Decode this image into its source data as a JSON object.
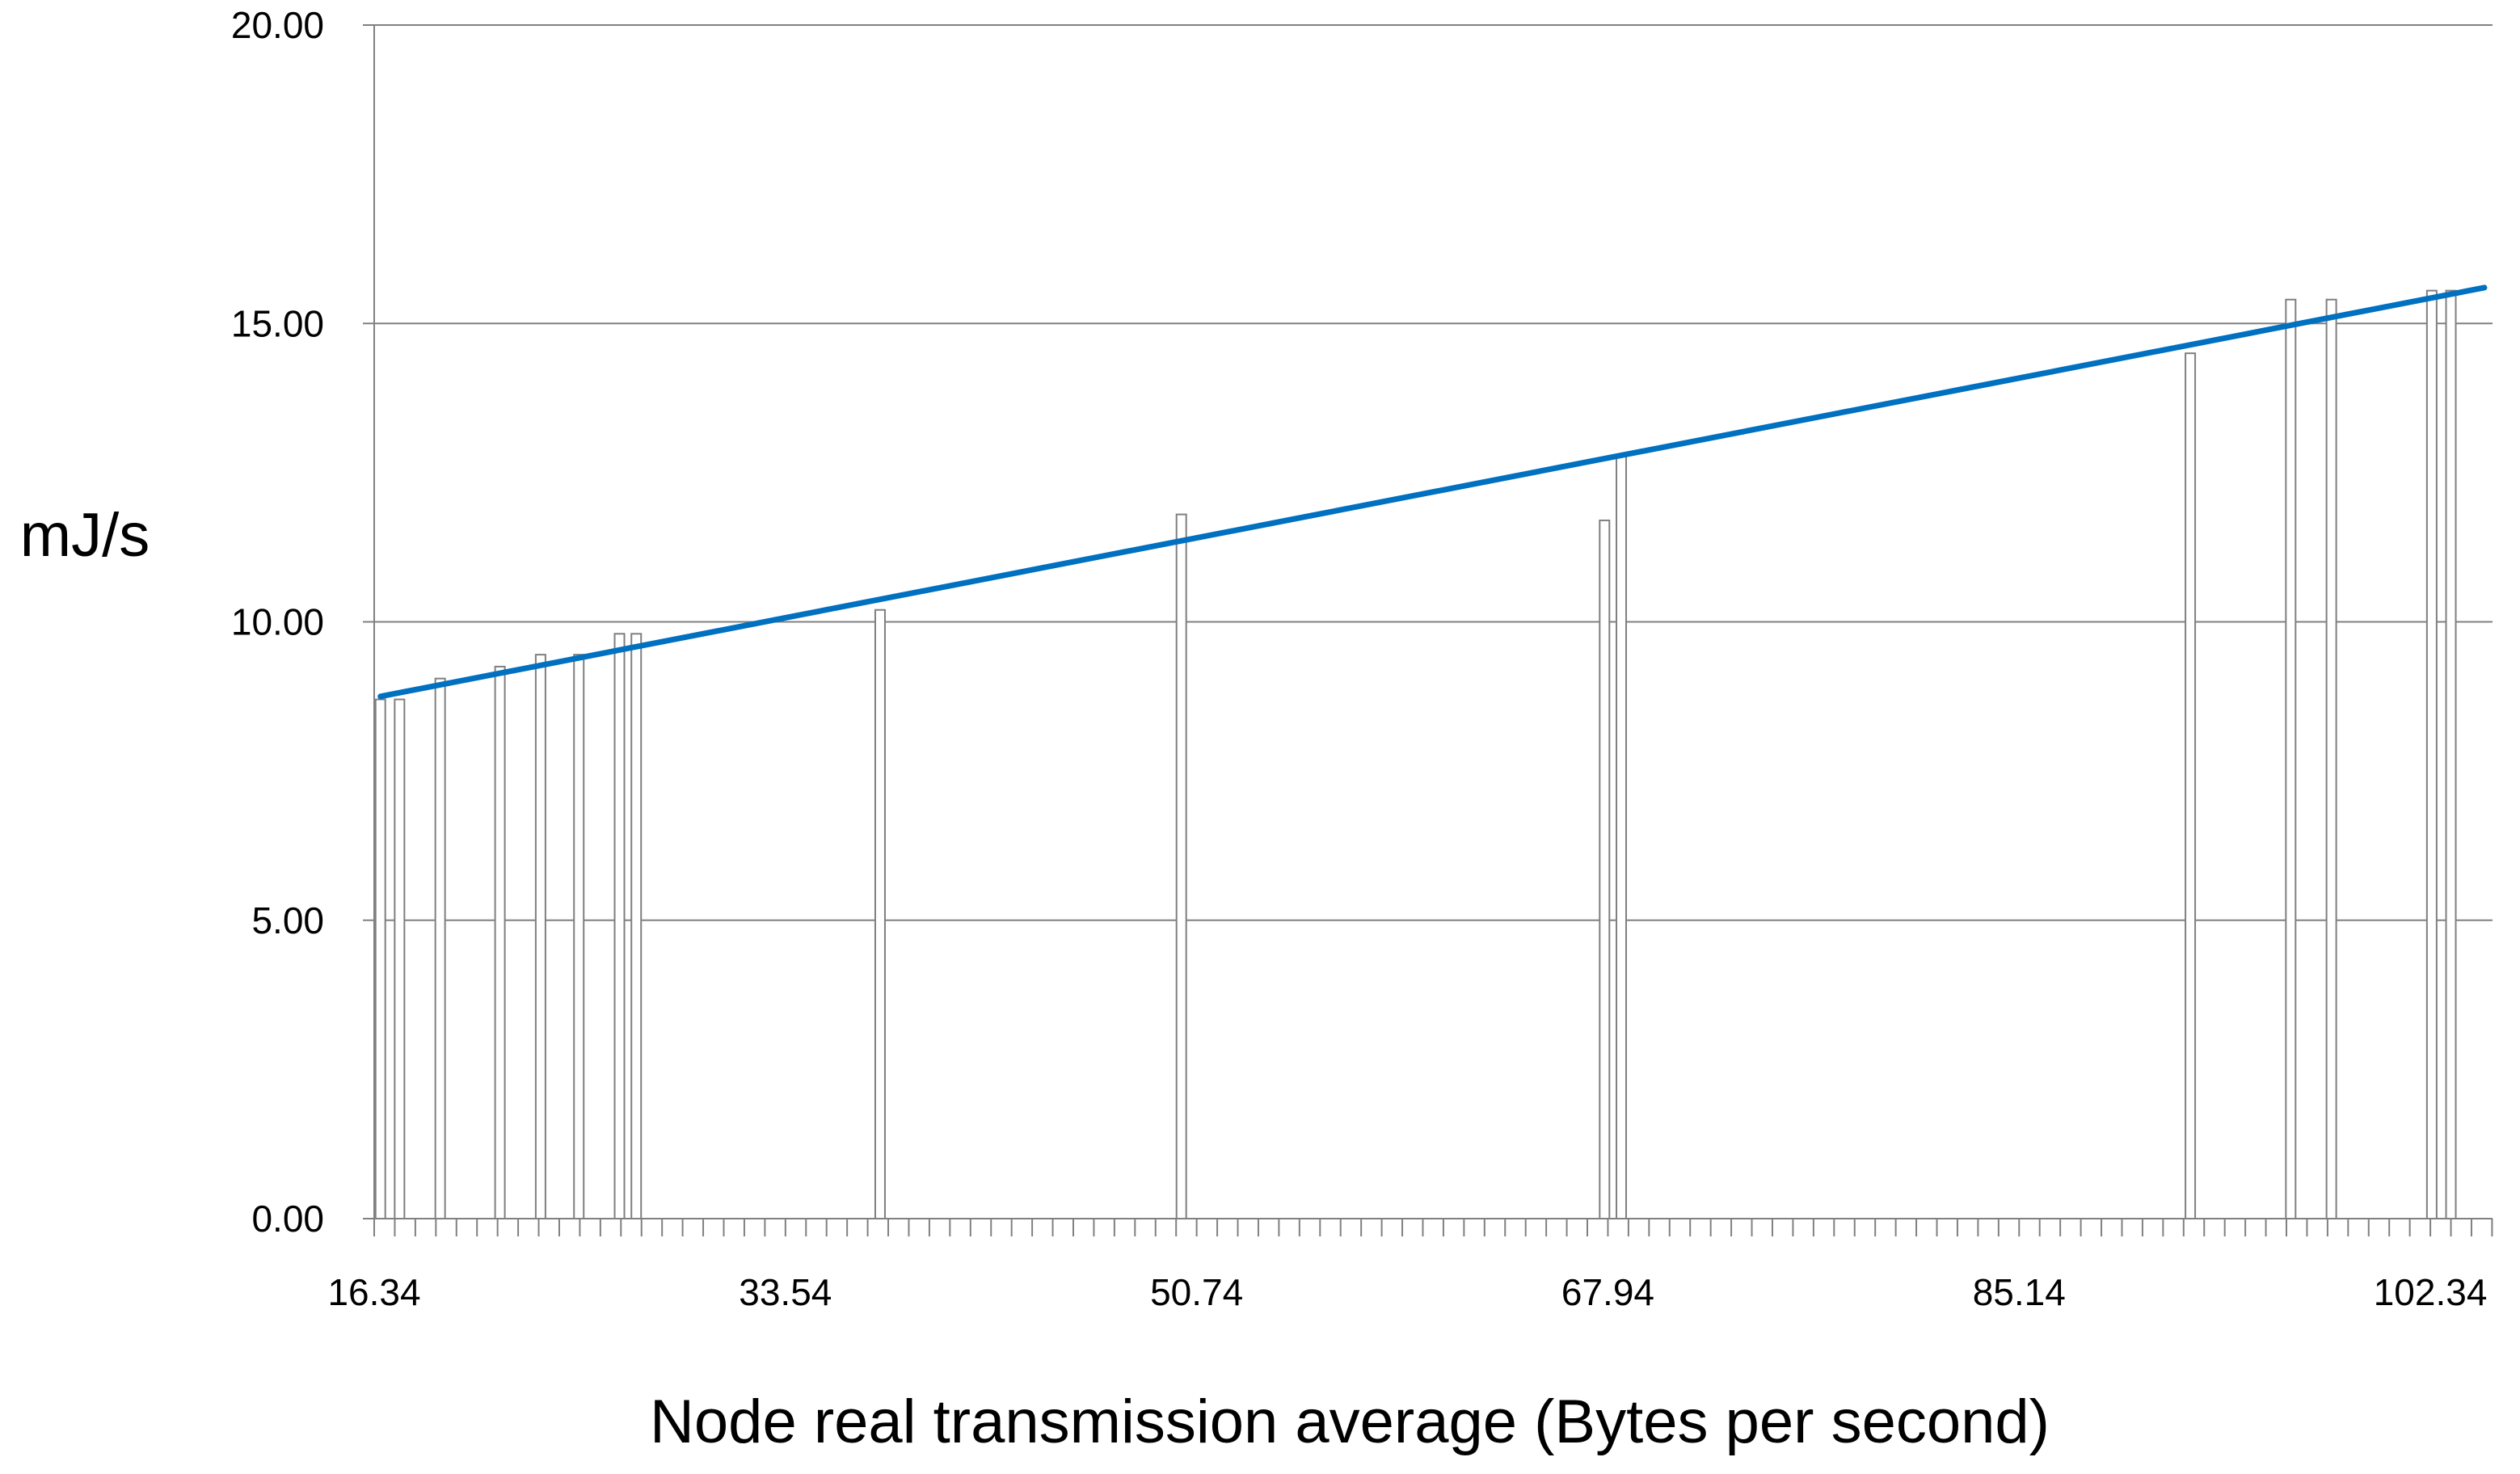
{
  "chart_data": {
    "type": "bar",
    "title": "",
    "xlabel": "Node real transmission average (Bytes per second)",
    "ylabel": "mJ/s",
    "xlim": [
      16.34,
      104.94
    ],
    "ylim": [
      0,
      20
    ],
    "grid": true,
    "legend": "none",
    "x_tick_labels": [
      "16.34",
      "33.54",
      "50.74",
      "67.94",
      "85.14",
      "102.34"
    ],
    "y_tick_labels": [
      "0.00",
      "5.00",
      "10.00",
      "15.00",
      "20.00"
    ],
    "y_ticks": [
      0,
      5,
      10,
      15,
      20
    ],
    "x_minor_tick_step": 0.86,
    "bars": {
      "x": [
        16.6,
        17.4,
        19.1,
        21.6,
        23.3,
        24.9,
        26.6,
        27.3,
        37.5,
        50.1,
        67.8,
        68.5,
        92.3,
        96.5,
        98.2,
        102.4,
        103.2
      ],
      "values": [
        8.7,
        8.7,
        9.05,
        9.25,
        9.45,
        9.45,
        9.8,
        9.8,
        10.2,
        11.8,
        11.7,
        12.8,
        14.5,
        15.4,
        15.4,
        15.55,
        15.55
      ]
    },
    "trendline": {
      "x": [
        16.6,
        104.6
      ],
      "values": [
        8.75,
        15.6
      ]
    },
    "colors": {
      "trendline": "#0070c0",
      "bar_fill": "#ffffff",
      "bar_stroke": "#7f7f7f",
      "gridline": "#808080",
      "axis": "#808080"
    }
  }
}
